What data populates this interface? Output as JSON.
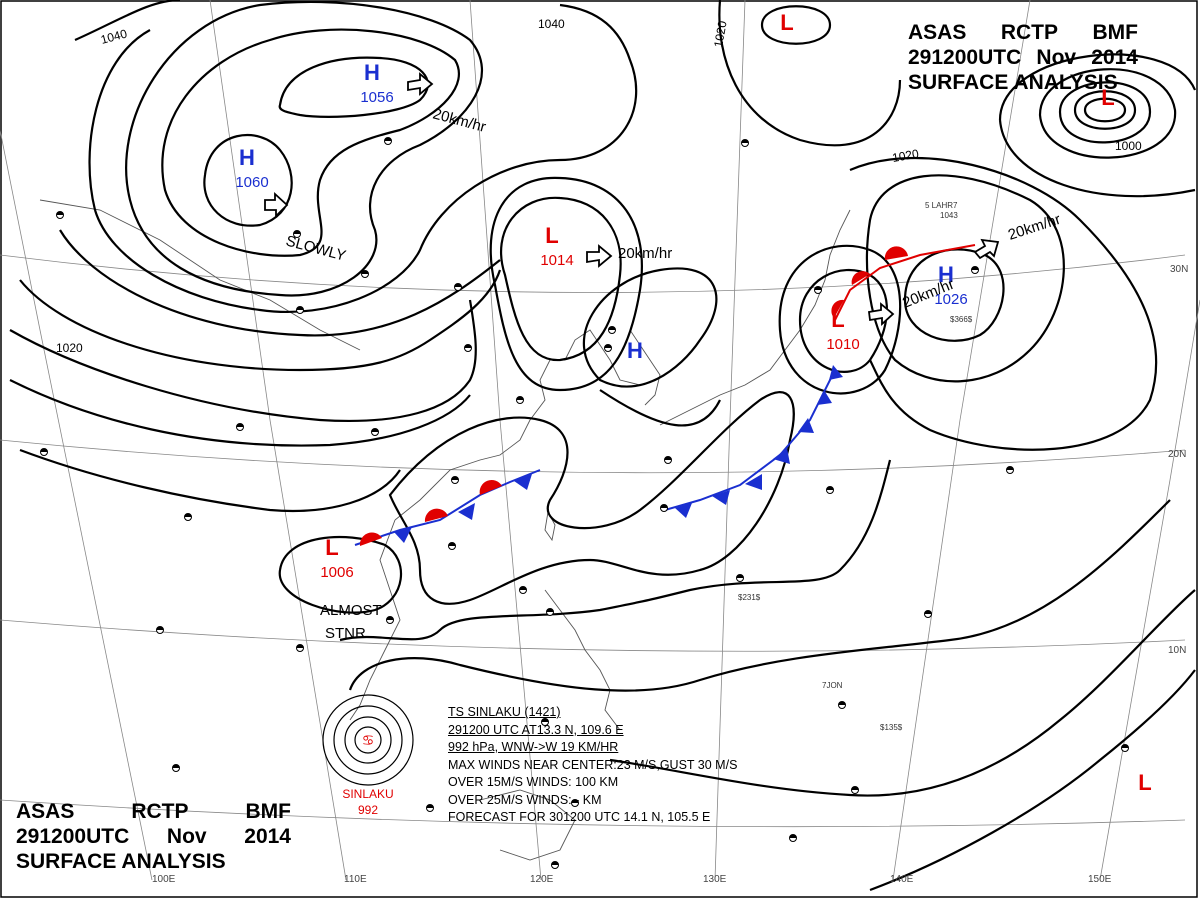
{
  "header": {
    "line1": [
      "ASAS",
      "RCTP",
      "BMF"
    ],
    "line2": [
      "291200UTC",
      "Nov",
      "2014"
    ],
    "line3": "SURFACE ANALYSIS"
  },
  "pressure_systems": [
    {
      "type": "H",
      "value": "1056",
      "color": "#1a2fd0"
    },
    {
      "type": "H",
      "value": "1060",
      "color": "#1a2fd0"
    },
    {
      "type": "L",
      "value": "1014",
      "color": "#e00000"
    },
    {
      "type": "H",
      "value": "",
      "color": "#1a2fd0"
    },
    {
      "type": "L",
      "value": "",
      "color": "#e00000"
    },
    {
      "type": "L",
      "value": "",
      "color": "#e00000"
    },
    {
      "type": "L",
      "value": "1010",
      "color": "#e00000"
    },
    {
      "type": "H",
      "value": "1026",
      "color": "#1a2fd0"
    },
    {
      "type": "L",
      "value": "1006",
      "color": "#e00000"
    },
    {
      "type": "L",
      "value": "",
      "color": "#e00000"
    }
  ],
  "isobar_labels": [
    "1040",
    "1040",
    "1020",
    "1020",
    "1020",
    "1000"
  ],
  "movement_labels": [
    "20km/hr",
    "20km/hr",
    "20km/hr",
    "20km/hr",
    "SLOWLY",
    "ALMOST",
    "STNR"
  ],
  "latitude_labels": [
    "30N",
    "20N",
    "10N"
  ],
  "longitude_labels": [
    "100E",
    "110E",
    "120E",
    "130E",
    "140E",
    "150E"
  ],
  "typhoon": {
    "marker_label": "SINLAKU",
    "marker_pressure": "992",
    "lines": [
      "TS  SINLAKU  (1421)",
      "291200 UTC  AT13.3 N, 109.6 E",
      "992 hPa, WNW->W  19 KM/HR",
      "MAX WINDS NEAR CENTER:23 M/S,GUST 30 M/S",
      "OVER 15M/S WINDS: 100 KM",
      "OVER 25M/S WINDS:  - KM",
      "FORECAST FOR 301200 UTC 14.1 N, 105.5 E"
    ]
  },
  "station_labels": [
    "1043",
    "5 LAHR7",
    "7JON",
    "$135$",
    "$231$",
    "$366$"
  ],
  "colors": {
    "high": "#1a2fd0",
    "low": "#e00000",
    "front_cold": "#1a2fd0",
    "front_warm": "#e00000",
    "isobar": "#000000",
    "coast": "#555555"
  }
}
